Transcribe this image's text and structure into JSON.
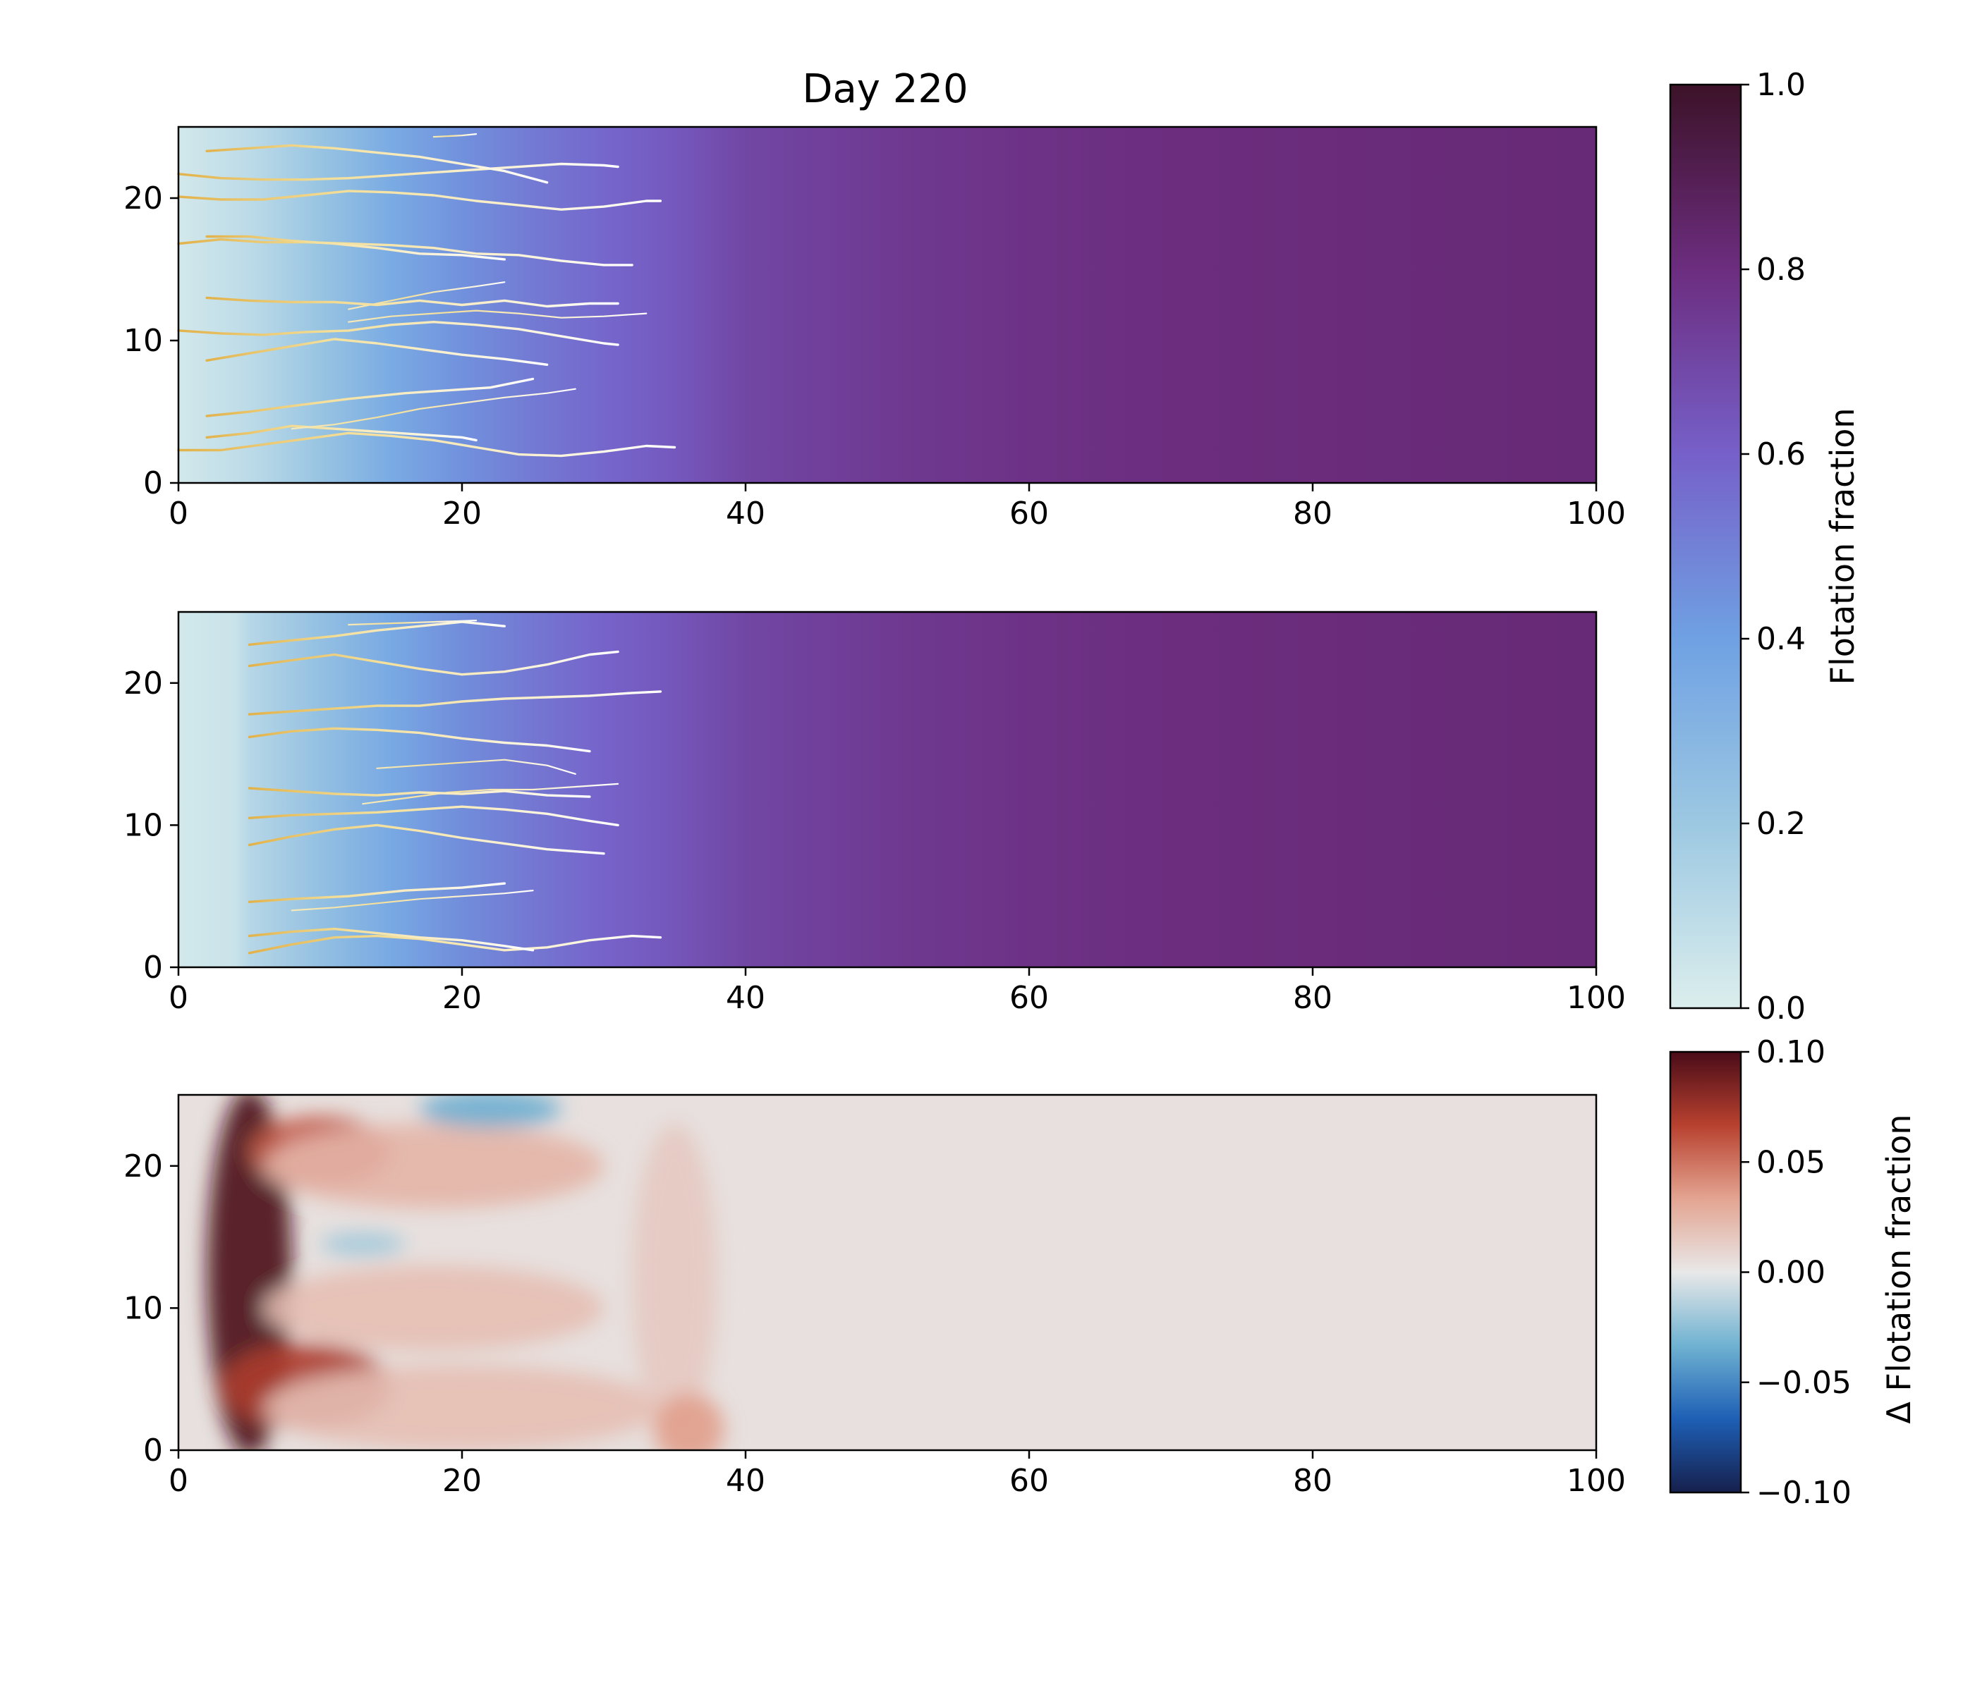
{
  "chart_data": [
    {
      "type": "heatmap",
      "title": "Day 220",
      "xlim": [
        0,
        100
      ],
      "ylim": [
        0,
        25
      ],
      "x_ticks": [
        "0",
        "20",
        "40",
        "60",
        "80",
        "100"
      ],
      "y_ticks": [
        "0",
        "10",
        "20"
      ],
      "field": "flotation fraction",
      "profile_x": [
        0,
        5,
        10,
        15,
        20,
        25,
        30,
        35,
        40,
        50,
        60,
        70,
        80,
        100
      ],
      "profile_value": [
        0.03,
        0.1,
        0.22,
        0.35,
        0.45,
        0.52,
        0.58,
        0.63,
        0.7,
        0.75,
        0.78,
        0.8,
        0.81,
        0.82
      ],
      "channel_starts_y": [
        2.3,
        5,
        9,
        11,
        13,
        17,
        20,
        22,
        24
      ],
      "channels": [
        {
          "y": 2.3,
          "x": [
            0,
            3,
            6,
            9,
            12,
            15,
            18,
            21,
            24,
            27,
            30,
            33,
            35
          ],
          "dy": [
            0,
            0,
            0.4,
            0.8,
            1.2,
            1.0,
            0.7,
            0.2,
            -0.3,
            -0.4,
            -0.1,
            0.3,
            0.2
          ]
        },
        {
          "y": 3.2,
          "x": [
            2,
            5,
            8,
            11,
            14,
            17,
            20,
            21
          ],
          "dy": [
            0,
            0.3,
            0.8,
            0.6,
            0.4,
            0.2,
            0,
            -0.2
          ]
        },
        {
          "y": 3.8,
          "x": [
            8,
            11,
            14,
            17,
            20,
            23,
            26,
            28
          ],
          "dy": [
            0,
            0.3,
            0.8,
            1.4,
            1.8,
            2.2,
            2.5,
            2.8
          ]
        },
        {
          "y": 4.7,
          "x": [
            2,
            5,
            8,
            12,
            16,
            19,
            22,
            25
          ],
          "dy": [
            0,
            0.3,
            0.7,
            1.2,
            1.6,
            1.8,
            2.0,
            2.6
          ]
        },
        {
          "y": 8.6,
          "x": [
            2,
            5,
            8,
            11,
            14,
            17,
            20,
            23,
            26
          ],
          "dy": [
            0,
            0.5,
            1.0,
            1.5,
            1.2,
            0.8,
            0.4,
            0.1,
            -0.3
          ]
        },
        {
          "y": 10.7,
          "x": [
            0,
            3,
            6,
            9,
            12,
            15,
            18,
            21,
            24,
            27,
            30,
            31
          ],
          "dy": [
            0,
            -0.2,
            -0.3,
            -0.1,
            0.0,
            0.4,
            0.6,
            0.4,
            0.1,
            -0.4,
            -0.9,
            -1.0
          ]
        },
        {
          "y": 11.3,
          "x": [
            12,
            15,
            18,
            21,
            24,
            27,
            30,
            33
          ],
          "dy": [
            0,
            0.4,
            0.6,
            0.8,
            0.6,
            0.3,
            0.4,
            0.6
          ]
        },
        {
          "y": 12.2,
          "x": [
            12,
            15,
            18,
            21,
            23
          ],
          "dy": [
            0,
            0.6,
            1.2,
            1.6,
            1.9
          ]
        },
        {
          "y": 13.0,
          "x": [
            2,
            5,
            8,
            11,
            14,
            17,
            20,
            23,
            26,
            29,
            31
          ],
          "dy": [
            0,
            -0.2,
            -0.3,
            -0.3,
            -0.5,
            -0.2,
            -0.5,
            -0.2,
            -0.6,
            -0.4,
            -0.4
          ]
        },
        {
          "y": 16.8,
          "x": [
            0,
            3,
            6,
            9,
            12,
            15,
            18,
            21,
            24,
            27,
            30,
            32
          ],
          "dy": [
            0,
            0.3,
            0.1,
            0.1,
            0.0,
            -0.1,
            -0.3,
            -0.7,
            -0.8,
            -1.2,
            -1.5,
            -1.5
          ]
        },
        {
          "y": 17.3,
          "x": [
            2,
            5,
            8,
            11,
            14,
            17,
            20,
            23
          ],
          "dy": [
            0,
            0.0,
            -0.3,
            -0.5,
            -0.8,
            -1.2,
            -1.3,
            -1.6
          ]
        },
        {
          "y": 20.1,
          "x": [
            0,
            3,
            6,
            9,
            12,
            15,
            18,
            21,
            24,
            27,
            30,
            33,
            34
          ],
          "dy": [
            0,
            -0.2,
            -0.2,
            0.1,
            0.4,
            0.3,
            0.1,
            -0.3,
            -0.6,
            -0.9,
            -0.7,
            -0.3,
            -0.3
          ]
        },
        {
          "y": 21.7,
          "x": [
            0,
            3,
            6,
            9,
            12,
            15,
            18,
            21,
            24,
            27,
            30,
            31
          ],
          "dy": [
            0,
            -0.3,
            -0.4,
            -0.4,
            -0.3,
            -0.1,
            0.1,
            0.3,
            0.5,
            0.7,
            0.6,
            0.5
          ]
        },
        {
          "y": 23.3,
          "x": [
            2,
            5,
            8,
            11,
            14,
            17,
            20,
            23,
            26
          ],
          "dy": [
            0,
            0.2,
            0.4,
            0.2,
            -0.1,
            -0.4,
            -0.9,
            -1.4,
            -2.2
          ]
        },
        {
          "y": 24.3,
          "x": [
            18,
            20,
            21
          ],
          "dy": [
            0,
            0.1,
            0.2
          ]
        }
      ]
    },
    {
      "type": "heatmap",
      "title": "",
      "xlim": [
        0,
        100
      ],
      "ylim": [
        0,
        25
      ],
      "x_ticks": [
        "0",
        "20",
        "40",
        "60",
        "80",
        "100"
      ],
      "y_ticks": [
        "0",
        "10",
        "20"
      ],
      "field": "flotation fraction",
      "profile_x": [
        0,
        4,
        5,
        10,
        15,
        20,
        25,
        30,
        35,
        40,
        50,
        60,
        70,
        80,
        100
      ],
      "profile_value": [
        0.03,
        0.06,
        0.12,
        0.24,
        0.36,
        0.46,
        0.53,
        0.59,
        0.64,
        0.7,
        0.75,
        0.78,
        0.8,
        0.81,
        0.82
      ],
      "channels": [
        {
          "y": 1.0,
          "x": [
            5,
            8,
            11,
            14,
            17,
            20,
            23,
            26,
            29,
            32,
            34
          ],
          "dy": [
            0,
            0.6,
            1.1,
            1.2,
            1.0,
            0.6,
            0.2,
            0.4,
            0.9,
            1.2,
            1.1
          ]
        },
        {
          "y": 2.2,
          "x": [
            5,
            8,
            11,
            14,
            17,
            20,
            23,
            25
          ],
          "dy": [
            0,
            0.3,
            0.5,
            0.2,
            -0.1,
            -0.3,
            -0.7,
            -1.0
          ]
        },
        {
          "y": 4.0,
          "x": [
            8,
            11,
            14,
            17,
            20,
            23,
            25
          ],
          "dy": [
            0,
            0.2,
            0.5,
            0.8,
            1.0,
            1.2,
            1.4
          ]
        },
        {
          "y": 4.6,
          "x": [
            5,
            8,
            12,
            16,
            20,
            23
          ],
          "dy": [
            0,
            0.2,
            0.4,
            0.8,
            1.0,
            1.3
          ]
        },
        {
          "y": 8.6,
          "x": [
            5,
            8,
            11,
            14,
            17,
            20,
            23,
            26,
            30
          ],
          "dy": [
            0,
            0.6,
            1.1,
            1.4,
            1.0,
            0.5,
            0.1,
            -0.3,
            -0.6
          ]
        },
        {
          "y": 10.5,
          "x": [
            5,
            8,
            11,
            14,
            17,
            20,
            23,
            26,
            29,
            31
          ],
          "dy": [
            0,
            0.2,
            0.3,
            0.4,
            0.6,
            0.8,
            0.6,
            0.3,
            -0.2,
            -0.5
          ]
        },
        {
          "y": 11.5,
          "x": [
            13,
            16,
            19,
            22,
            25,
            28,
            31
          ],
          "dy": [
            0,
            0.4,
            0.8,
            1.0,
            1.0,
            1.2,
            1.4
          ]
        },
        {
          "y": 12.6,
          "x": [
            5,
            8,
            11,
            14,
            17,
            20,
            23,
            26,
            29
          ],
          "dy": [
            0,
            -0.2,
            -0.4,
            -0.5,
            -0.3,
            -0.4,
            -0.2,
            -0.5,
            -0.6
          ]
        },
        {
          "y": 14.0,
          "x": [
            14,
            17,
            20,
            23,
            26,
            28
          ],
          "dy": [
            0,
            0.2,
            0.4,
            0.6,
            0.2,
            -0.4
          ]
        },
        {
          "y": 16.2,
          "x": [
            5,
            8,
            11,
            14,
            17,
            20,
            23,
            26,
            29
          ],
          "dy": [
            0,
            0.4,
            0.6,
            0.5,
            0.3,
            -0.1,
            -0.4,
            -0.6,
            -1.0
          ]
        },
        {
          "y": 17.8,
          "x": [
            5,
            8,
            11,
            14,
            17,
            20,
            23,
            26,
            29,
            32,
            34
          ],
          "dy": [
            0,
            0.2,
            0.4,
            0.6,
            0.6,
            0.9,
            1.1,
            1.2,
            1.3,
            1.5,
            1.6
          ]
        },
        {
          "y": 21.2,
          "x": [
            5,
            8,
            11,
            14,
            17,
            20,
            23,
            26,
            29,
            31
          ],
          "dy": [
            0,
            0.4,
            0.8,
            0.3,
            -0.2,
            -0.6,
            -0.4,
            0.1,
            0.8,
            1.0
          ]
        },
        {
          "y": 22.7,
          "x": [
            5,
            8,
            11,
            14,
            17,
            20,
            23
          ],
          "dy": [
            0,
            0.3,
            0.6,
            1.0,
            1.3,
            1.6,
            1.3
          ]
        },
        {
          "y": 24.1,
          "x": [
            12,
            15,
            18,
            21
          ],
          "dy": [
            0,
            0.1,
            0.2,
            0.3
          ]
        }
      ]
    },
    {
      "type": "heatmap",
      "title": "",
      "xlim": [
        0,
        100
      ],
      "ylim": [
        0,
        25
      ],
      "x_ticks": [
        "0",
        "20",
        "40",
        "60",
        "80",
        "100"
      ],
      "y_ticks": [
        "0",
        "10",
        "20"
      ],
      "field": "difference in flotation fraction",
      "hotspots": [
        {
          "x": 5,
          "y": 12.5,
          "rx": 3,
          "ry": 13,
          "value": 0.1
        },
        {
          "x": 10,
          "y": 21,
          "rx": 5,
          "ry": 2.5,
          "value": 0.06
        },
        {
          "x": 9,
          "y": 4.5,
          "rx": 6,
          "ry": 3,
          "value": 0.07
        },
        {
          "x": 18,
          "y": 20,
          "rx": 12,
          "ry": 3,
          "value": 0.025
        },
        {
          "x": 18,
          "y": 10,
          "rx": 12,
          "ry": 3,
          "value": 0.02
        },
        {
          "x": 20,
          "y": 3,
          "rx": 14,
          "ry": 3,
          "value": 0.02
        },
        {
          "x": 35,
          "y": 12,
          "rx": 3,
          "ry": 11,
          "value": 0.015
        },
        {
          "x": 36,
          "y": 1.5,
          "rx": 2.5,
          "ry": 2.5,
          "value": 0.035
        },
        {
          "x": 22,
          "y": 24,
          "rx": 5,
          "ry": 1.3,
          "value": -0.035
        },
        {
          "x": 13,
          "y": 14.5,
          "rx": 3,
          "ry": 0.8,
          "value": -0.02
        }
      ]
    }
  ],
  "colorbars": [
    {
      "label": "Flotation fraction",
      "ticks": [
        "0.0",
        "0.2",
        "0.4",
        "0.6",
        "0.8",
        "1.0"
      ],
      "range": [
        0,
        1
      ],
      "colors": [
        "#dceeed",
        "#9cc8e2",
        "#6fa1e3",
        "#7660c9",
        "#6c2d7f",
        "#3c1228"
      ]
    },
    {
      "label": "Δ Flotation fraction",
      "ticks": [
        "0.10",
        "0.05",
        "0.00",
        "−0.05",
        "−0.10"
      ],
      "range": [
        -0.1,
        0.1
      ],
      "colors": [
        "#16204d",
        "#1e5fb5",
        "#6fb2d1",
        "#e8e8e8",
        "#e3a491",
        "#b8412f",
        "#4a0c18"
      ]
    }
  ]
}
